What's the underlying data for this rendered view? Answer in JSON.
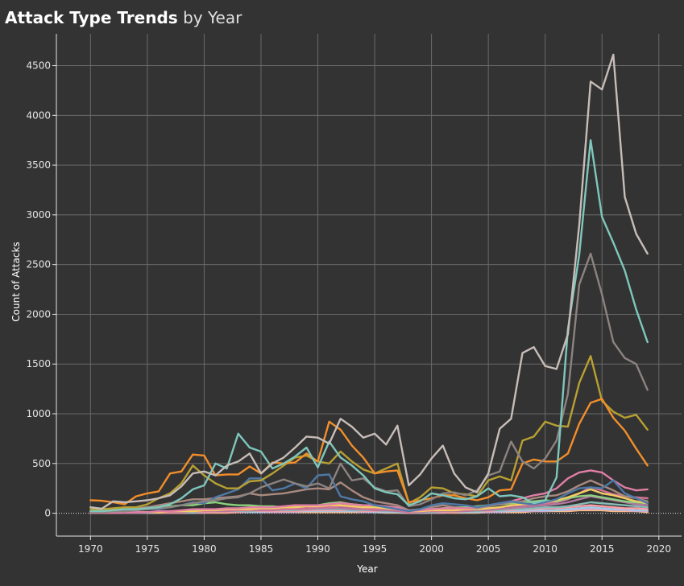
{
  "header": {
    "title_bold": "Attack Type Trends",
    "title_light": "by Year"
  },
  "chart_data": {
    "type": "line",
    "xlabel": "Year",
    "ylabel": "Count of Attacks",
    "xlim": [
      1967,
      2022
    ],
    "ylim": [
      -230,
      4820
    ],
    "xticks": [
      1970,
      1975,
      1980,
      1985,
      1990,
      1995,
      2000,
      2005,
      2010,
      2015,
      2020
    ],
    "yticks": [
      0,
      500,
      1000,
      1500,
      2000,
      2500,
      3000,
      3500,
      4000,
      4500
    ],
    "grid": true,
    "legend": "none",
    "x": [
      1970,
      1971,
      1972,
      1973,
      1974,
      1975,
      1976,
      1977,
      1978,
      1979,
      1980,
      1981,
      1982,
      1983,
      1984,
      1985,
      1986,
      1987,
      1988,
      1989,
      1990,
      1991,
      1992,
      1993,
      1994,
      1995,
      1996,
      1997,
      1998,
      1999,
      2000,
      2001,
      2002,
      2003,
      2004,
      2005,
      2006,
      2007,
      2008,
      2009,
      2010,
      2011,
      2012,
      2013,
      2014,
      2015,
      2016,
      2017,
      2018,
      2019
    ],
    "series": [
      {
        "color": "#c7bdb8",
        "values": [
          60,
          45,
          120,
          110,
          120,
          130,
          150,
          180,
          270,
          400,
          420,
          380,
          480,
          520,
          600,
          400,
          500,
          560,
          660,
          770,
          760,
          700,
          950,
          870,
          760,
          800,
          690,
          880,
          280,
          390,
          550,
          680,
          400,
          260,
          210,
          400,
          850,
          950,
          1610,
          1670,
          1480,
          1450,
          1800,
          2900,
          4340,
          4260,
          4610,
          3180,
          2810,
          2610
        ]
      },
      {
        "color": "#7ec7bc",
        "values": [
          20,
          20,
          30,
          40,
          40,
          50,
          60,
          90,
          150,
          240,
          280,
          500,
          450,
          800,
          660,
          620,
          450,
          500,
          570,
          660,
          460,
          720,
          560,
          480,
          380,
          250,
          210,
          190,
          80,
          120,
          200,
          180,
          150,
          140,
          170,
          250,
          170,
          180,
          160,
          100,
          130,
          360,
          1850,
          2600,
          3750,
          2980,
          2720,
          2440,
          2050,
          1720
        ]
      },
      {
        "color": "#8c8380",
        "values": [
          10,
          10,
          20,
          20,
          30,
          40,
          50,
          60,
          80,
          100,
          120,
          130,
          150,
          160,
          200,
          260,
          300,
          340,
          300,
          270,
          300,
          250,
          500,
          330,
          350,
          260,
          220,
          230,
          70,
          90,
          140,
          200,
          210,
          180,
          230,
          380,
          420,
          720,
          520,
          450,
          550,
          730,
          1200,
          2300,
          2610,
          2200,
          1720,
          1560,
          1500,
          1240
        ]
      },
      {
        "color": "#f28e2b",
        "values": [
          130,
          125,
          110,
          90,
          170,
          200,
          220,
          400,
          420,
          590,
          580,
          380,
          390,
          390,
          470,
          400,
          510,
          500,
          510,
          600,
          520,
          920,
          840,
          680,
          560,
          400,
          420,
          430,
          110,
          130,
          150,
          180,
          180,
          150,
          130,
          160,
          230,
          240,
          500,
          540,
          520,
          520,
          600,
          900,
          1110,
          1150,
          960,
          830,
          650,
          480
        ]
      },
      {
        "color": "#b8a031",
        "values": [
          40,
          40,
          50,
          60,
          60,
          90,
          150,
          200,
          300,
          480,
          380,
          300,
          250,
          250,
          320,
          330,
          400,
          480,
          560,
          580,
          520,
          500,
          620,
          520,
          440,
          400,
          450,
          500,
          100,
          160,
          260,
          250,
          200,
          190,
          170,
          330,
          370,
          330,
          730,
          770,
          920,
          880,
          870,
          1310,
          1580,
          1130,
          1020,
          960,
          990,
          840
        ]
      },
      {
        "color": "#4e79a7",
        "values": [
          10,
          10,
          20,
          20,
          30,
          40,
          40,
          60,
          80,
          110,
          100,
          160,
          200,
          240,
          350,
          350,
          230,
          250,
          300,
          250,
          380,
          390,
          170,
          140,
          120,
          80,
          60,
          40,
          20,
          40,
          80,
          100,
          90,
          80,
          60,
          80,
          100,
          120,
          100,
          90,
          110,
          140,
          200,
          250,
          260,
          250,
          330,
          200,
          150,
          100
        ]
      },
      {
        "color": "#e07ea5",
        "values": [
          5,
          5,
          5,
          10,
          10,
          10,
          20,
          20,
          30,
          40,
          40,
          40,
          50,
          50,
          60,
          60,
          60,
          70,
          80,
          80,
          80,
          90,
          100,
          90,
          80,
          80,
          70,
          60,
          20,
          30,
          40,
          50,
          50,
          50,
          60,
          80,
          100,
          120,
          150,
          180,
          200,
          250,
          350,
          410,
          430,
          410,
          330,
          260,
          230,
          240
        ]
      },
      {
        "color": "#a98a80",
        "values": [
          10,
          20,
          30,
          40,
          50,
          60,
          80,
          100,
          120,
          140,
          140,
          150,
          160,
          170,
          200,
          180,
          190,
          200,
          220,
          240,
          250,
          240,
          310,
          230,
          160,
          120,
          100,
          80,
          30,
          40,
          60,
          80,
          60,
          50,
          50,
          70,
          90,
          110,
          120,
          150,
          170,
          180,
          220,
          280,
          330,
          280,
          230,
          170,
          150,
          120
        ]
      },
      {
        "color": "#f1ce63",
        "values": [
          5,
          5,
          5,
          10,
          10,
          10,
          10,
          20,
          20,
          20,
          30,
          30,
          40,
          40,
          40,
          50,
          50,
          60,
          60,
          70,
          70,
          80,
          80,
          70,
          60,
          60,
          50,
          40,
          20,
          20,
          30,
          30,
          30,
          40,
          40,
          50,
          60,
          80,
          90,
          100,
          110,
          130,
          160,
          200,
          240,
          200,
          180,
          150,
          120,
          100
        ]
      },
      {
        "color": "#8cd17d",
        "values": [
          20,
          30,
          40,
          40,
          50,
          60,
          60,
          70,
          80,
          80,
          100,
          110,
          90,
          80,
          80,
          70,
          70,
          60,
          80,
          80,
          80,
          100,
          110,
          90,
          80,
          60,
          60,
          50,
          20,
          30,
          40,
          50,
          60,
          60,
          70,
          80,
          90,
          100,
          110,
          120,
          130,
          120,
          150,
          170,
          180,
          160,
          140,
          120,
          110,
          100
        ]
      },
      {
        "color": "#d37295",
        "values": [
          5,
          5,
          5,
          5,
          10,
          10,
          10,
          10,
          20,
          20,
          20,
          30,
          30,
          30,
          30,
          40,
          40,
          40,
          50,
          50,
          60,
          60,
          70,
          60,
          50,
          40,
          40,
          30,
          10,
          20,
          20,
          30,
          30,
          30,
          40,
          50,
          60,
          70,
          80,
          90,
          100,
          110,
          140,
          200,
          260,
          230,
          190,
          170,
          160,
          150
        ]
      },
      {
        "color": "#b07aa1",
        "values": [
          5,
          5,
          5,
          5,
          5,
          10,
          10,
          10,
          10,
          20,
          20,
          20,
          20,
          30,
          30,
          30,
          30,
          40,
          40,
          40,
          50,
          50,
          50,
          40,
          40,
          30,
          30,
          20,
          10,
          10,
          20,
          20,
          20,
          20,
          30,
          30,
          40,
          50,
          60,
          70,
          80,
          90,
          110,
          140,
          170,
          150,
          130,
          110,
          90,
          80
        ]
      },
      {
        "color": "#86bcb6",
        "values": [
          5,
          5,
          5,
          5,
          5,
          5,
          10,
          10,
          10,
          10,
          20,
          20,
          20,
          20,
          20,
          30,
          30,
          30,
          30,
          40,
          40,
          40,
          40,
          30,
          30,
          30,
          20,
          20,
          10,
          10,
          10,
          20,
          20,
          20,
          20,
          30,
          30,
          40,
          40,
          50,
          60,
          60,
          70,
          90,
          110,
          100,
          90,
          80,
          70,
          60
        ]
      },
      {
        "color": "#ff9da7",
        "values": [
          2,
          2,
          2,
          2,
          5,
          5,
          5,
          5,
          5,
          10,
          10,
          10,
          10,
          10,
          20,
          20,
          20,
          20,
          20,
          30,
          30,
          30,
          30,
          30,
          20,
          20,
          20,
          20,
          5,
          10,
          10,
          10,
          10,
          20,
          20,
          20,
          30,
          30,
          40,
          40,
          50,
          50,
          60,
          70,
          80,
          70,
          60,
          50,
          50,
          40
        ]
      },
      {
        "color": "#a0cbe8",
        "values": [
          2,
          2,
          2,
          2,
          2,
          5,
          5,
          5,
          5,
          5,
          10,
          10,
          10,
          10,
          10,
          10,
          20,
          20,
          20,
          20,
          20,
          20,
          20,
          20,
          20,
          10,
          10,
          10,
          5,
          5,
          10,
          10,
          10,
          10,
          10,
          20,
          20,
          20,
          30,
          30,
          30,
          30,
          40,
          50,
          60,
          50,
          40,
          40,
          30,
          30
        ]
      },
      {
        "color": "#d4a6c8",
        "values": [
          2,
          2,
          2,
          2,
          2,
          2,
          5,
          5,
          5,
          5,
          5,
          10,
          10,
          10,
          10,
          10,
          10,
          10,
          10,
          20,
          20,
          20,
          20,
          20,
          10,
          10,
          10,
          10,
          2,
          5,
          5,
          5,
          10,
          10,
          10,
          10,
          10,
          20,
          20,
          20,
          20,
          30,
          30,
          40,
          40,
          40,
          30,
          30,
          20,
          20
        ]
      },
      {
        "color": "#ffbe7d",
        "values": [
          2,
          2,
          2,
          2,
          2,
          2,
          2,
          5,
          5,
          5,
          5,
          5,
          5,
          10,
          10,
          10,
          10,
          10,
          10,
          10,
          10,
          10,
          10,
          10,
          10,
          10,
          5,
          5,
          2,
          2,
          5,
          5,
          5,
          5,
          5,
          10,
          10,
          10,
          10,
          20,
          20,
          20,
          20,
          30,
          30,
          30,
          20,
          20,
          20,
          10
        ]
      }
    ]
  }
}
